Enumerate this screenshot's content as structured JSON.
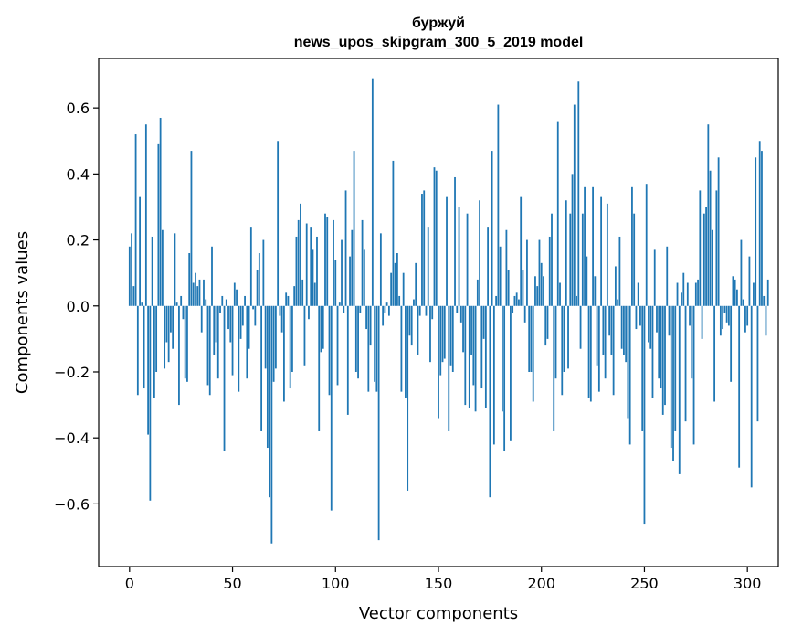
{
  "chart_data": {
    "type": "bar",
    "title": "буржуй",
    "subtitle": "news_upos_skipgram_300_5_2019 model",
    "xlabel": "Vector components",
    "ylabel": "Components values",
    "xlim": [
      -15,
      315
    ],
    "ylim": [
      -0.79,
      0.75
    ],
    "xticks": [
      0,
      50,
      100,
      150,
      200,
      250,
      300
    ],
    "yticks": [
      -0.6,
      -0.4,
      -0.2,
      0.0,
      0.2,
      0.4,
      0.6
    ],
    "ytick_labels": [
      "−0.6",
      "−0.4",
      "−0.2",
      "0.0",
      "0.2",
      "0.4",
      "0.6"
    ],
    "grid": false,
    "legend": "none",
    "color": "#1f77b4",
    "values": [
      0.18,
      0.22,
      0.06,
      0.52,
      -0.27,
      0.33,
      0.01,
      -0.25,
      0.55,
      -0.39,
      -0.59,
      0.21,
      -0.28,
      -0.2,
      0.49,
      0.57,
      0.23,
      -0.19,
      -0.11,
      -0.17,
      -0.08,
      -0.13,
      0.22,
      0.01,
      -0.3,
      0.03,
      -0.04,
      -0.22,
      -0.23,
      0.16,
      0.47,
      0.07,
      0.1,
      0.06,
      0.08,
      -0.08,
      0.08,
      0.02,
      -0.24,
      -0.27,
      0.18,
      -0.15,
      -0.11,
      -0.22,
      -0.02,
      0.03,
      -0.44,
      0.02,
      -0.07,
      -0.11,
      -0.21,
      0.07,
      0.05,
      -0.26,
      -0.1,
      -0.06,
      0.03,
      -0.22,
      -0.13,
      0.24,
      -0.01,
      -0.06,
      0.11,
      0.16,
      -0.38,
      0.2,
      -0.19,
      -0.43,
      -0.58,
      -0.72,
      -0.23,
      -0.19,
      0.5,
      -0.03,
      -0.08,
      -0.29,
      0.04,
      0.03,
      -0.25,
      -0.2,
      0.06,
      0.21,
      0.26,
      0.31,
      0.08,
      -0.18,
      0.25,
      -0.04,
      0.24,
      0.17,
      0.07,
      0.21,
      -0.38,
      -0.14,
      -0.13,
      0.28,
      0.27,
      -0.27,
      -0.62,
      0.26,
      0.14,
      -0.24,
      0.01,
      0.2,
      -0.02,
      0.35,
      -0.33,
      0.15,
      0.23,
      0.47,
      -0.2,
      -0.22,
      -0.02,
      0.26,
      0.17,
      -0.07,
      -0.26,
      -0.12,
      0.69,
      -0.23,
      -0.26,
      -0.71,
      0.22,
      -0.06,
      -0.02,
      0.01,
      -0.03,
      0.1,
      0.44,
      0.13,
      0.16,
      0.03,
      -0.26,
      0.1,
      -0.28,
      -0.56,
      -0.09,
      -0.12,
      0.02,
      0.13,
      -0.15,
      -0.03,
      0.34,
      0.35,
      -0.03,
      0.24,
      -0.17,
      -0.04,
      0.42,
      0.41,
      -0.34,
      -0.21,
      -0.17,
      -0.16,
      0.33,
      -0.38,
      -0.18,
      -0.2,
      0.39,
      -0.02,
      0.3,
      -0.05,
      -0.14,
      -0.3,
      0.28,
      -0.31,
      -0.15,
      -0.24,
      -0.32,
      0.08,
      0.32,
      -0.25,
      -0.1,
      -0.31,
      0.24,
      -0.58,
      0.47,
      -0.42,
      0.03,
      0.61,
      0.18,
      -0.32,
      -0.44,
      0.23,
      0.11,
      -0.41,
      -0.02,
      0.03,
      0.04,
      0.02,
      0.33,
      0.11,
      -0.05,
      0.2,
      -0.2,
      -0.2,
      -0.29,
      0.09,
      0.06,
      0.2,
      0.13,
      0.09,
      -0.12,
      -0.1,
      0.21,
      0.28,
      -0.38,
      -0.22,
      0.56,
      0.07,
      -0.27,
      -0.2,
      0.32,
      -0.19,
      0.28,
      0.4,
      0.61,
      0.03,
      0.68,
      -0.13,
      0.28,
      0.36,
      0.15,
      -0.28,
      -0.29,
      0.36,
      0.09,
      -0.18,
      -0.26,
      0.33,
      -0.15,
      -0.22,
      0.31,
      -0.09,
      -0.15,
      -0.27,
      0.12,
      0.02,
      0.21,
      -0.13,
      -0.15,
      -0.17,
      -0.34,
      -0.42,
      0.36,
      0.28,
      -0.07,
      0.07,
      -0.06,
      -0.38,
      -0.66,
      0.37,
      -0.11,
      -0.13,
      -0.28,
      0.17,
      -0.08,
      -0.22,
      -0.25,
      -0.33,
      -0.3,
      0.18,
      -0.09,
      -0.43,
      -0.47,
      -0.38,
      0.07,
      -0.51,
      0.04,
      0.1,
      -0.35,
      0.07,
      -0.06,
      -0.22,
      -0.42,
      0.07,
      0.08,
      0.35,
      -0.1,
      0.28,
      0.3,
      0.55,
      0.41,
      0.23,
      -0.29,
      0.35,
      0.45,
      -0.09,
      -0.07,
      -0.02,
      -0.05,
      -0.06,
      -0.23,
      0.09,
      0.08,
      0.05,
      -0.49,
      0.2,
      0.02,
      -0.08,
      -0.06,
      0.15,
      -0.55,
      0.07,
      0.45,
      -0.35,
      0.5,
      0.47,
      0.03,
      -0.09,
      0.08
    ]
  }
}
